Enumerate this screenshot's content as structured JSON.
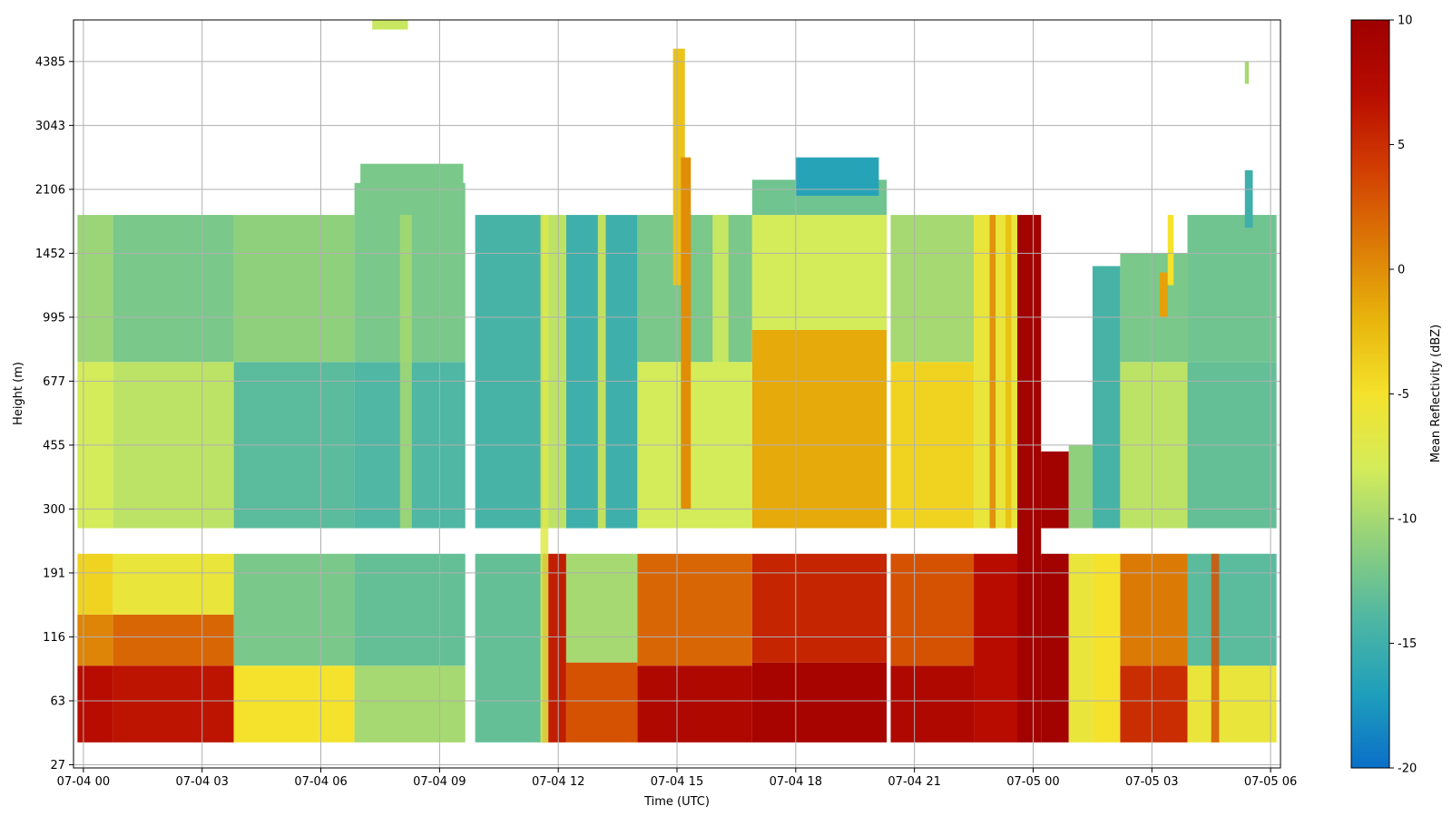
{
  "chart_data": {
    "type": "heatmap",
    "title": "",
    "xlabel": "Time (UTC)",
    "ylabel": "Height (m)",
    "x_range_hours": [
      -0.25,
      30.25
    ],
    "x_ticks": [
      {
        "hours": 0,
        "label": "07-04 00"
      },
      {
        "hours": 3,
        "label": "07-04 03"
      },
      {
        "hours": 6,
        "label": "07-04 06"
      },
      {
        "hours": 9,
        "label": "07-04 09"
      },
      {
        "hours": 12,
        "label": "07-04 12"
      },
      {
        "hours": 15,
        "label": "07-04 15"
      },
      {
        "hours": 18,
        "label": "07-04 18"
      },
      {
        "hours": 21,
        "label": "07-04 21"
      },
      {
        "hours": 24,
        "label": "07-05 00"
      },
      {
        "hours": 27,
        "label": "07-05 03"
      },
      {
        "hours": 30,
        "label": "07-05 06"
      }
    ],
    "y_tick_labels": [
      "27",
      "63",
      "116",
      "191",
      "300",
      "455",
      "677",
      "995",
      "1452",
      "2106",
      "3043",
      "4385"
    ],
    "y_index_range": [
      -0.05,
      11.65
    ],
    "grid": true,
    "colorbar": {
      "label": "Mean Reflectivity (dBZ)",
      "min": -20,
      "max": 10,
      "ticks": [
        "10",
        "5",
        "0",
        "-5",
        "-10",
        "-15",
        "-20"
      ],
      "colormap": [
        "#0a6fc8",
        "#1f9fbb",
        "#4fb7a3",
        "#8fd07d",
        "#d4ec5a",
        "#f4e22c",
        "#e8b40c",
        "#dc7a06",
        "#d23e02",
        "#b80c00",
        "#9e0000"
      ]
    },
    "blocks": [
      {
        "t0": -0.15,
        "t1": 0.75,
        "z0": 0.35,
        "z1": 1.55,
        "v": 7.0
      },
      {
        "t0": -0.15,
        "t1": 0.75,
        "z0": 1.55,
        "z1": 2.35,
        "v": 0.5
      },
      {
        "t0": -0.15,
        "t1": 0.75,
        "z0": 2.35,
        "z1": 3.3,
        "v": -4.0
      },
      {
        "t0": -0.15,
        "t1": 0.75,
        "z0": 3.7,
        "z1": 6.3,
        "v": -8.0
      },
      {
        "t0": -0.15,
        "t1": 0.75,
        "z0": 6.3,
        "z1": 8.6,
        "v": -10.5
      },
      {
        "t0": 0.75,
        "t1": 3.8,
        "z0": 0.35,
        "z1": 1.55,
        "v": 6.5
      },
      {
        "t0": 0.75,
        "t1": 3.8,
        "z0": 1.55,
        "z1": 2.35,
        "v": 2.0
      },
      {
        "t0": 0.75,
        "t1": 3.8,
        "z0": 2.35,
        "z1": 3.3,
        "v": -6.0
      },
      {
        "t0": 0.75,
        "t1": 3.8,
        "z0": 3.7,
        "z1": 6.3,
        "v": -9.0
      },
      {
        "t0": 0.75,
        "t1": 3.8,
        "z0": 6.3,
        "z1": 8.6,
        "v": -12.0
      },
      {
        "t0": 3.8,
        "t1": 6.85,
        "z0": 0.35,
        "z1": 1.55,
        "v": -5.0
      },
      {
        "t0": 3.8,
        "t1": 6.85,
        "z0": 1.55,
        "z1": 3.3,
        "v": -12.0
      },
      {
        "t0": 3.8,
        "t1": 6.85,
        "z0": 3.7,
        "z1": 6.3,
        "v": -13.5
      },
      {
        "t0": 3.8,
        "t1": 6.85,
        "z0": 6.3,
        "z1": 8.6,
        "v": -11.0
      },
      {
        "t0": 6.85,
        "t1": 9.65,
        "z0": 0.35,
        "z1": 1.55,
        "v": -10.0
      },
      {
        "t0": 6.85,
        "t1": 9.65,
        "z0": 1.55,
        "z1": 3.3,
        "v": -13.0
      },
      {
        "t0": 6.85,
        "t1": 9.65,
        "z0": 3.7,
        "z1": 6.3,
        "v": -14.0
      },
      {
        "t0": 6.85,
        "t1": 9.65,
        "z0": 6.3,
        "z1": 9.1,
        "v": -12.0
      },
      {
        "t0": 9.9,
        "t1": 11.6,
        "z0": 0.35,
        "z1": 3.3,
        "v": -13.0
      },
      {
        "t0": 9.9,
        "t1": 11.6,
        "z0": 3.7,
        "z1": 8.6,
        "v": -14.5
      },
      {
        "t0": 11.6,
        "t1": 12.2,
        "z0": 0.35,
        "z1": 3.3,
        "v": 6.0
      },
      {
        "t0": 11.6,
        "t1": 12.2,
        "z0": 3.7,
        "z1": 8.6,
        "v": -9.0
      },
      {
        "t0": 12.2,
        "t1": 14.0,
        "z0": 0.35,
        "z1": 1.6,
        "v": 3.0
      },
      {
        "t0": 12.2,
        "t1": 14.0,
        "z0": 1.6,
        "z1": 3.3,
        "v": -10.0
      },
      {
        "t0": 12.2,
        "t1": 14.0,
        "z0": 3.7,
        "z1": 8.6,
        "v": -15.0
      },
      {
        "t0": 14.0,
        "t1": 16.9,
        "z0": 0.35,
        "z1": 1.55,
        "v": 8.0
      },
      {
        "t0": 14.0,
        "t1": 16.9,
        "z0": 1.55,
        "z1": 3.3,
        "v": 2.0
      },
      {
        "t0": 14.0,
        "t1": 16.9,
        "z0": 3.7,
        "z1": 6.3,
        "v": -8.0
      },
      {
        "t0": 14.0,
        "t1": 16.9,
        "z0": 6.3,
        "z1": 8.6,
        "v": -12.0
      },
      {
        "t0": 16.9,
        "t1": 20.3,
        "z0": 0.35,
        "z1": 1.6,
        "v": 9.0
      },
      {
        "t0": 16.9,
        "t1": 20.3,
        "z0": 1.6,
        "z1": 3.3,
        "v": 5.5
      },
      {
        "t0": 16.9,
        "t1": 20.3,
        "z0": 3.7,
        "z1": 6.8,
        "v": -1.5
      },
      {
        "t0": 16.9,
        "t1": 20.3,
        "z0": 6.8,
        "z1": 8.6,
        "v": -8.0
      },
      {
        "t0": 16.9,
        "t1": 20.3,
        "z0": 8.6,
        "z1": 9.15,
        "v": -12.5
      },
      {
        "t0": 20.4,
        "t1": 22.5,
        "z0": 0.35,
        "z1": 1.55,
        "v": 8.0
      },
      {
        "t0": 20.4,
        "t1": 22.5,
        "z0": 1.55,
        "z1": 3.3,
        "v": 3.0
      },
      {
        "t0": 20.4,
        "t1": 22.5,
        "z0": 3.7,
        "z1": 6.3,
        "v": -4.0
      },
      {
        "t0": 20.4,
        "t1": 22.5,
        "z0": 6.3,
        "z1": 8.6,
        "v": -10.0
      },
      {
        "t0": 22.5,
        "t1": 23.6,
        "z0": 0.35,
        "z1": 3.3,
        "v": 7.0
      },
      {
        "t0": 22.5,
        "t1": 23.6,
        "z0": 3.7,
        "z1": 8.6,
        "v": -6.0
      },
      {
        "t0": 23.6,
        "t1": 24.2,
        "z0": 0.35,
        "z1": 8.6,
        "v": 9.5
      },
      {
        "t0": 24.2,
        "t1": 24.9,
        "z0": 0.35,
        "z1": 3.3,
        "v": 9.5
      },
      {
        "t0": 24.2,
        "t1": 24.9,
        "z0": 3.7,
        "z1": 4.9,
        "v": 9.5
      },
      {
        "t0": 24.9,
        "t1": 25.5,
        "z0": 0.35,
        "z1": 3.3,
        "v": -6.0
      },
      {
        "t0": 24.9,
        "t1": 25.5,
        "z0": 3.7,
        "z1": 5.0,
        "v": -11.0
      },
      {
        "t0": 25.5,
        "t1": 26.2,
        "z0": 0.35,
        "z1": 3.3,
        "v": -5.0
      },
      {
        "t0": 25.5,
        "t1": 26.2,
        "z0": 3.7,
        "z1": 7.8,
        "v": -14.5
      },
      {
        "t0": 26.2,
        "t1": 27.9,
        "z0": 0.35,
        "z1": 1.55,
        "v": 5.0
      },
      {
        "t0": 26.2,
        "t1": 27.9,
        "z0": 1.55,
        "z1": 3.3,
        "v": 1.0
      },
      {
        "t0": 26.2,
        "t1": 27.9,
        "z0": 3.7,
        "z1": 6.3,
        "v": -9.0
      },
      {
        "t0": 26.2,
        "t1": 27.9,
        "z0": 6.3,
        "z1": 8.0,
        "v": -12.0
      },
      {
        "t0": 27.9,
        "t1": 30.15,
        "z0": 0.35,
        "z1": 1.55,
        "v": -6.0
      },
      {
        "t0": 27.9,
        "t1": 30.15,
        "z0": 1.55,
        "z1": 3.3,
        "v": -13.5
      },
      {
        "t0": 27.9,
        "t1": 30.15,
        "z0": 3.7,
        "z1": 6.3,
        "v": -13.0
      },
      {
        "t0": 27.9,
        "t1": 30.15,
        "z0": 6.3,
        "z1": 8.6,
        "v": -12.5
      },
      {
        "t0": 7.0,
        "t1": 9.6,
        "z0": 8.6,
        "z1": 9.4,
        "v": -12.0
      },
      {
        "t0": 18.0,
        "t1": 20.1,
        "z0": 8.9,
        "z1": 9.5,
        "v": -16.5
      },
      {
        "t0": 7.3,
        "t1": 8.2,
        "z0": 11.5,
        "z1": 11.7,
        "v": -8.5
      },
      {
        "t0": 14.9,
        "t1": 15.2,
        "z0": 7.5,
        "z1": 11.2,
        "v": -3.0
      },
      {
        "t0": 15.1,
        "t1": 15.35,
        "z0": 4.0,
        "z1": 9.5,
        "v": 0.0
      },
      {
        "t0": 29.35,
        "t1": 29.55,
        "z0": 8.4,
        "z1": 9.3,
        "v": -15.0
      },
      {
        "t0": 29.35,
        "t1": 29.45,
        "z0": 10.65,
        "z1": 11.0,
        "v": -10.0
      },
      {
        "t0": 27.2,
        "t1": 27.4,
        "z0": 7.0,
        "z1": 7.7,
        "v": -1.0
      },
      {
        "t0": 27.4,
        "t1": 27.55,
        "z0": 7.5,
        "z1": 8.6,
        "v": -5.0
      }
    ],
    "streaks": [
      {
        "t0": 11.55,
        "t1": 11.75,
        "z0": 0.35,
        "z1": 8.6,
        "v": -7.0
      },
      {
        "t0": 13.0,
        "t1": 13.2,
        "z0": 3.7,
        "z1": 8.6,
        "v": -7.5
      },
      {
        "t0": 15.9,
        "t1": 16.3,
        "z0": 3.7,
        "z1": 8.6,
        "v": -8.0
      },
      {
        "t0": 22.9,
        "t1": 23.05,
        "z0": 3.7,
        "z1": 8.6,
        "v": 0.5
      },
      {
        "t0": 23.3,
        "t1": 23.45,
        "z0": 3.7,
        "z1": 8.6,
        "v": -2.5
      },
      {
        "t0": 28.5,
        "t1": 28.7,
        "z0": 0.35,
        "z1": 3.3,
        "v": 3.0
      },
      {
        "t0": 8.0,
        "t1": 8.3,
        "z0": 3.7,
        "z1": 8.6,
        "v": -10.0
      }
    ]
  }
}
